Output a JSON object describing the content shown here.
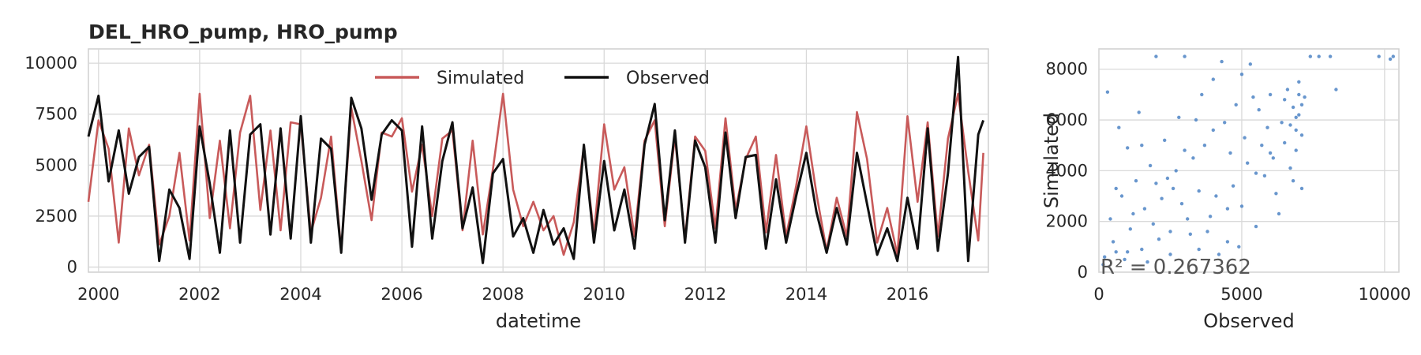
{
  "title": "DEL_HRO_pump, HRO_pump",
  "chart_data": [
    {
      "type": "line",
      "xlabel": "datetime",
      "ylabel": "",
      "xlim": [
        1999.8,
        2017.6
      ],
      "ylim": [
        -250,
        10700
      ],
      "x_ticks": [
        "2000",
        "2002",
        "2004",
        "2006",
        "2008",
        "2010",
        "2012",
        "2014",
        "2016"
      ],
      "y_ticks": [
        "0",
        "2500",
        "5000",
        "7500",
        "10000"
      ],
      "grid": true,
      "legend_position": "top-center",
      "series": [
        {
          "name": "Simulated",
          "color": "#c85a5a",
          "x": [
            1999.8,
            2000.0,
            2000.2,
            2000.4,
            2000.6,
            2000.8,
            2001.0,
            2001.2,
            2001.4,
            2001.6,
            2001.8,
            2002.0,
            2002.2,
            2002.4,
            2002.6,
            2002.8,
            2003.0,
            2003.2,
            2003.4,
            2003.6,
            2003.8,
            2004.0,
            2004.2,
            2004.4,
            2004.6,
            2004.8,
            2005.0,
            2005.2,
            2005.4,
            2005.6,
            2005.8,
            2006.0,
            2006.2,
            2006.4,
            2006.6,
            2006.8,
            2007.0,
            2007.2,
            2007.4,
            2007.6,
            2007.8,
            2008.0,
            2008.2,
            2008.4,
            2008.6,
            2008.8,
            2009.0,
            2009.2,
            2009.4,
            2009.6,
            2009.8,
            2010.0,
            2010.2,
            2010.4,
            2010.6,
            2010.8,
            2011.0,
            2011.2,
            2011.4,
            2011.6,
            2011.8,
            2012.0,
            2012.2,
            2012.4,
            2012.6,
            2012.8,
            2013.0,
            2013.2,
            2013.4,
            2013.6,
            2013.8,
            2014.0,
            2014.2,
            2014.4,
            2014.6,
            2014.8,
            2015.0,
            2015.2,
            2015.4,
            2015.6,
            2015.8,
            2016.0,
            2016.2,
            2016.4,
            2016.6,
            2016.8,
            2017.0,
            2017.2,
            2017.4,
            2017.5
          ],
          "y": [
            3200,
            7200,
            5800,
            1200,
            6800,
            4500,
            6000,
            1100,
            2500,
            5600,
            1300,
            8500,
            2400,
            6200,
            1900,
            6600,
            8400,
            2800,
            6700,
            1800,
            7100,
            7000,
            1700,
            3400,
            6400,
            800,
            7800,
            5200,
            2300,
            6600,
            6400,
            7300,
            3700,
            6000,
            2500,
            6300,
            6700,
            1800,
            6200,
            1600,
            4800,
            8500,
            3800,
            2000,
            3200,
            1800,
            2500,
            600,
            2200,
            5900,
            1600,
            7000,
            3800,
            4900,
            1500,
            6200,
            7200,
            2000,
            6400,
            1400,
            6400,
            5700,
            1900,
            7300,
            2800,
            5300,
            6400,
            1700,
            5500,
            1500,
            4000,
            6900,
            3600,
            800,
            3400,
            1500,
            7600,
            5300,
            1200,
            2900,
            600,
            7400,
            3200,
            7100,
            1500,
            6300,
            8500,
            4700,
            1300,
            5600
          ]
        },
        {
          "name": "Observed",
          "color": "#111111",
          "x": [
            1999.8,
            2000.0,
            2000.2,
            2000.4,
            2000.6,
            2000.8,
            2001.0,
            2001.2,
            2001.4,
            2001.6,
            2001.8,
            2002.0,
            2002.2,
            2002.4,
            2002.6,
            2002.8,
            2003.0,
            2003.2,
            2003.4,
            2003.6,
            2003.8,
            2004.0,
            2004.2,
            2004.4,
            2004.6,
            2004.8,
            2005.0,
            2005.2,
            2005.4,
            2005.6,
            2005.8,
            2006.0,
            2006.2,
            2006.4,
            2006.6,
            2006.8,
            2007.0,
            2007.2,
            2007.4,
            2007.6,
            2007.8,
            2008.0,
            2008.2,
            2008.4,
            2008.6,
            2008.8,
            2009.0,
            2009.2,
            2009.4,
            2009.6,
            2009.8,
            2010.0,
            2010.2,
            2010.4,
            2010.6,
            2010.8,
            2011.0,
            2011.2,
            2011.4,
            2011.6,
            2011.8,
            2012.0,
            2012.2,
            2012.4,
            2012.6,
            2012.8,
            2013.0,
            2013.2,
            2013.4,
            2013.6,
            2013.8,
            2014.0,
            2014.2,
            2014.4,
            2014.6,
            2014.8,
            2015.0,
            2015.2,
            2015.4,
            2015.6,
            2015.8,
            2016.0,
            2016.2,
            2016.4,
            2016.6,
            2016.8,
            2017.0,
            2017.2,
            2017.4,
            2017.5
          ],
          "y": [
            6400,
            8400,
            4200,
            6700,
            3600,
            5400,
            5900,
            300,
            3800,
            2900,
            400,
            6900,
            4100,
            700,
            6700,
            1200,
            6500,
            7000,
            1600,
            6800,
            1400,
            7400,
            1200,
            6300,
            5800,
            700,
            8300,
            6800,
            3300,
            6500,
            7200,
            6700,
            1000,
            6900,
            1400,
            5200,
            7100,
            1900,
            3900,
            200,
            4600,
            5300,
            1500,
            2400,
            700,
            2800,
            1100,
            1900,
            400,
            6000,
            1200,
            5200,
            1800,
            3800,
            900,
            6000,
            8000,
            2300,
            6700,
            1200,
            6200,
            4900,
            1200,
            6600,
            2400,
            5400,
            5500,
            900,
            4300,
            1200,
            3500,
            5600,
            2700,
            700,
            2900,
            1100,
            5600,
            3100,
            600,
            1900,
            300,
            3400,
            900,
            6800,
            800,
            4600,
            10300,
            300,
            6500,
            7200
          ]
        }
      ]
    },
    {
      "type": "scatter",
      "xlabel": "Observed",
      "ylabel": "Simulated",
      "xlim": [
        0,
        10500
      ],
      "ylim": [
        0,
        8800
      ],
      "x_ticks": [
        "0",
        "5000",
        "10000"
      ],
      "y_ticks": [
        "0",
        "2000",
        "4000",
        "6000",
        "8000"
      ],
      "grid": true,
      "color": "#4e84c4",
      "annotation": "R² = 0.267362",
      "points": [
        [
          200,
          600
        ],
        [
          400,
          2100
        ],
        [
          600,
          800
        ],
        [
          800,
          3000
        ],
        [
          900,
          500
        ],
        [
          1100,
          1700
        ],
        [
          1300,
          3600
        ],
        [
          1500,
          900
        ],
        [
          1600,
          2500
        ],
        [
          1800,
          4200
        ],
        [
          2000,
          8500
        ],
        [
          2100,
          1300
        ],
        [
          2300,
          5200
        ],
        [
          2500,
          700
        ],
        [
          2600,
          3300
        ],
        [
          2800,
          6100
        ],
        [
          3000,
          8500
        ],
        [
          3100,
          2100
        ],
        [
          3300,
          4500
        ],
        [
          3500,
          900
        ],
        [
          3600,
          7000
        ],
        [
          3800,
          1600
        ],
        [
          4000,
          5600
        ],
        [
          4100,
          3000
        ],
        [
          4300,
          8300
        ],
        [
          4500,
          1200
        ],
        [
          4600,
          4700
        ],
        [
          4800,
          6600
        ],
        [
          5000,
          2600
        ],
        [
          5100,
          5300
        ],
        [
          5300,
          8200
        ],
        [
          5500,
          1800
        ],
        [
          5600,
          6400
        ],
        [
          5800,
          3800
        ],
        [
          6000,
          7000
        ],
        [
          6100,
          4500
        ],
        [
          6300,
          2300
        ],
        [
          6400,
          5900
        ],
        [
          6600,
          7200
        ],
        [
          6700,
          4100
        ],
        [
          6800,
          6500
        ],
        [
          6900,
          5600
        ],
        [
          7000,
          7500
        ],
        [
          7100,
          3300
        ],
        [
          7200,
          6900
        ],
        [
          7400,
          8500
        ],
        [
          7700,
          8500
        ],
        [
          8100,
          8500
        ],
        [
          8300,
          7200
        ],
        [
          9800,
          8500
        ],
        [
          10200,
          8400
        ],
        [
          10300,
          8500
        ],
        [
          300,
          7100
        ],
        [
          700,
          5700
        ],
        [
          1000,
          4900
        ],
        [
          1400,
          6300
        ],
        [
          1700,
          400
        ],
        [
          2200,
          2900
        ],
        [
          2700,
          4000
        ],
        [
          3200,
          1500
        ],
        [
          3700,
          5000
        ],
        [
          4200,
          700
        ],
        [
          4700,
          3400
        ],
        [
          5200,
          4300
        ],
        [
          5700,
          5000
        ],
        [
          6200,
          3100
        ],
        [
          6500,
          6800
        ],
        [
          6900,
          4800
        ],
        [
          7000,
          6200
        ],
        [
          7100,
          5400
        ],
        [
          500,
          1200
        ],
        [
          1200,
          2300
        ],
        [
          1900,
          1900
        ],
        [
          2400,
          3700
        ],
        [
          2900,
          2700
        ],
        [
          3400,
          6000
        ],
        [
          3900,
          2200
        ],
        [
          4400,
          5900
        ],
        [
          4900,
          1000
        ],
        [
          5400,
          6900
        ],
        [
          5900,
          5700
        ],
        [
          6800,
          3600
        ],
        [
          150,
          300
        ],
        [
          600,
          3300
        ],
        [
          1000,
          800
        ],
        [
          1500,
          5000
        ],
        [
          2000,
          3500
        ],
        [
          2500,
          1600
        ],
        [
          3000,
          4800
        ],
        [
          3500,
          3200
        ],
        [
          4000,
          7600
        ],
        [
          4500,
          2500
        ],
        [
          5000,
          7800
        ],
        [
          5500,
          3900
        ],
        [
          6000,
          4700
        ],
        [
          6500,
          5100
        ],
        [
          7000,
          7000
        ],
        [
          6700,
          5800
        ],
        [
          6900,
          6100
        ],
        [
          7100,
          6600
        ]
      ]
    }
  ]
}
